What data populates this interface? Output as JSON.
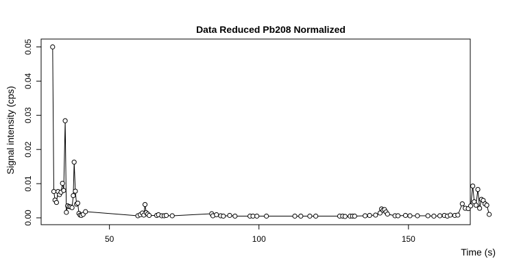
{
  "chart_data": {
    "type": "line",
    "title": "Data Reduced Pb208 Normalized",
    "xlabel": "Time (s)",
    "ylabel": "Signal intensity (cps)",
    "xlim": [
      30,
      178
    ],
    "ylim": [
      0,
      0.05
    ],
    "x_ticks": [
      50,
      100,
      150
    ],
    "x_tick_labels": [
      "50",
      "100",
      "150"
    ],
    "y_ticks": [
      0.0,
      0.01,
      0.02,
      0.03,
      0.04,
      0.05
    ],
    "y_tick_labels": [
      "0.00",
      "0.01",
      "0.02",
      "0.03",
      "0.04",
      "0.05"
    ],
    "grid": false,
    "legend": "none",
    "series": [
      {
        "style": "line-with-open-circles",
        "color": "#000000",
        "x": [
          31.0,
          31.4,
          31.8,
          32.3,
          32.8,
          33.3,
          33.8,
          34.3,
          34.7,
          35.2,
          35.6,
          36.0,
          36.5,
          37.0,
          37.5,
          37.9,
          38.2,
          38.6,
          39.0,
          39.4,
          39.8,
          40.2,
          40.6,
          41.2,
          42.0,
          59.5,
          60.3,
          61.0,
          61.5,
          61.9,
          62.3,
          62.8,
          63.3,
          65.8,
          66.4,
          67.5,
          68.3,
          69.0,
          71.0,
          84.2,
          84.6,
          85.8,
          87.2,
          88.1,
          90.2,
          92.0,
          97.0,
          98.0,
          99.3,
          102.5,
          112.0,
          114.0,
          117.0,
          119.0,
          127.0,
          128.0,
          128.8,
          130.5,
          131.3,
          132.0,
          135.5,
          137.0,
          139.0,
          140.5,
          141.0,
          141.5,
          142.0,
          142.5,
          143.0,
          145.5,
          146.5,
          149.0,
          150.5,
          153.0,
          156.5,
          158.5,
          160.5,
          162.0,
          163.0,
          164.0,
          165.5,
          166.5,
          168.0,
          169.0,
          170.0,
          170.8,
          171.5,
          172.0,
          172.6,
          173.2,
          173.8,
          174.4,
          175.0,
          175.6,
          176.2,
          177.0
        ],
        "y": [
          0.05,
          0.0077,
          0.0052,
          0.0045,
          0.0077,
          0.0068,
          0.0075,
          0.0101,
          0.008,
          0.0284,
          0.0016,
          0.0035,
          0.0033,
          0.0032,
          0.003,
          0.0065,
          0.0163,
          0.0078,
          0.004,
          0.0043,
          0.0013,
          0.0008,
          0.0007,
          0.001,
          0.0018,
          0.0006,
          0.0009,
          0.0014,
          0.0008,
          0.0039,
          0.0015,
          0.0011,
          0.0007,
          0.0007,
          0.0009,
          0.0006,
          0.0006,
          0.0007,
          0.0006,
          0.0012,
          0.0006,
          0.0009,
          0.0006,
          0.0005,
          0.0007,
          0.0005,
          0.0005,
          0.0005,
          0.0005,
          0.0005,
          0.0005,
          0.0005,
          0.0005,
          0.0005,
          0.0005,
          0.0005,
          0.0004,
          0.0005,
          0.0005,
          0.0005,
          0.0006,
          0.0007,
          0.0008,
          0.0014,
          0.0026,
          0.0022,
          0.0024,
          0.0017,
          0.0011,
          0.0006,
          0.0006,
          0.0007,
          0.0006,
          0.0006,
          0.0006,
          0.0005,
          0.0006,
          0.0007,
          0.0005,
          0.0008,
          0.0007,
          0.0008,
          0.0041,
          0.0028,
          0.0027,
          0.0035,
          0.0093,
          0.0047,
          0.0037,
          0.0083,
          0.0028,
          0.0054,
          0.0051,
          0.0041,
          0.0037,
          0.001
        ]
      }
    ]
  }
}
